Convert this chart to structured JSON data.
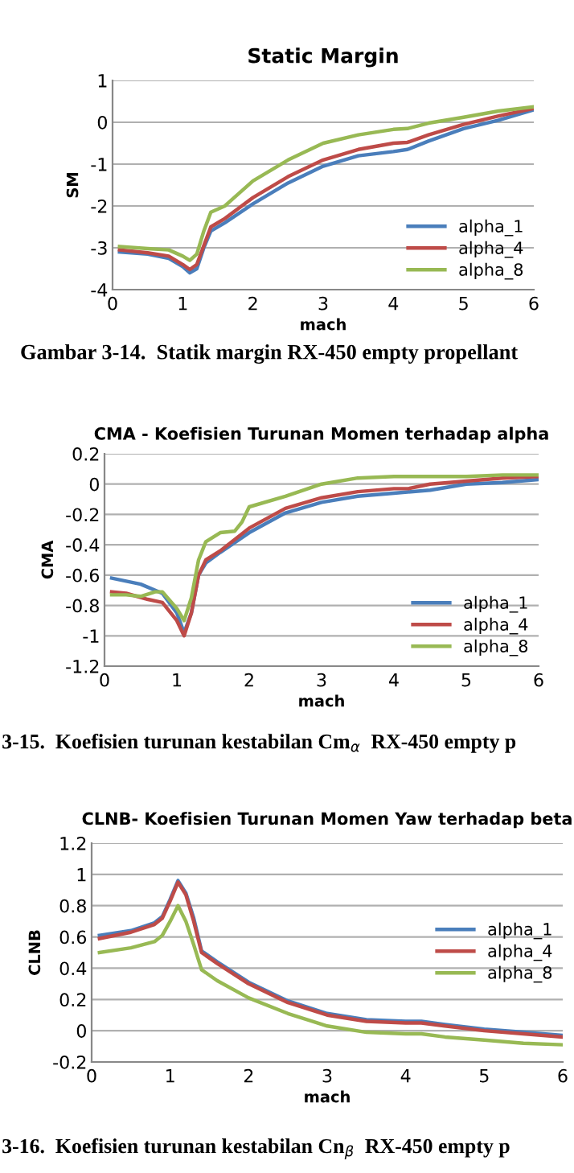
{
  "chart_data": [
    {
      "type": "line",
      "title": "Static Margin",
      "xlabel": "mach",
      "ylabel": "SM",
      "xlim": [
        0,
        6
      ],
      "xticks": [
        0,
        1,
        2,
        3,
        4,
        5,
        6
      ],
      "ylim": [
        -4,
        1
      ],
      "yticks": [
        -4,
        -3,
        -2,
        -1,
        0,
        1
      ],
      "grid": "y",
      "legend": "bottom right",
      "marker": "none",
      "line_style": "solid",
      "annotations": [
        "Gambar 3-14.  Statik margin RX-450 empty propellant"
      ],
      "series": [
        {
          "name": "alpha_1",
          "color": "#4a7ebb",
          "x": [
            0.1,
            0.5,
            0.8,
            1.0,
            1.1,
            1.2,
            1.3,
            1.4,
            1.6,
            2,
            2.5,
            3,
            3.5,
            4,
            4.2,
            4.5,
            5,
            5.5,
            6
          ],
          "values": [
            -3.1,
            -3.15,
            -3.25,
            -3.45,
            -3.6,
            -3.5,
            -3.0,
            -2.6,
            -2.4,
            -1.95,
            -1.45,
            -1.05,
            -0.8,
            -0.7,
            -0.65,
            -0.45,
            -0.15,
            0.05,
            0.3
          ]
        },
        {
          "name": "alpha_4",
          "color": "#be4b48",
          "x": [
            0.1,
            0.5,
            0.8,
            1.0,
            1.1,
            1.2,
            1.3,
            1.4,
            1.6,
            2,
            2.5,
            3,
            3.5,
            4,
            4.2,
            4.5,
            5,
            5.5,
            6
          ],
          "values": [
            -3.05,
            -3.12,
            -3.2,
            -3.4,
            -3.52,
            -3.4,
            -2.95,
            -2.5,
            -2.3,
            -1.8,
            -1.3,
            -0.9,
            -0.65,
            -0.5,
            -0.48,
            -0.3,
            -0.05,
            0.15,
            0.33
          ]
        },
        {
          "name": "alpha_8",
          "color": "#98b954",
          "x": [
            0.1,
            0.5,
            0.8,
            1.0,
            1.1,
            1.2,
            1.3,
            1.4,
            1.6,
            1.7,
            2,
            2.5,
            3,
            3.5,
            4,
            4.2,
            4.5,
            5,
            5.5,
            6
          ],
          "values": [
            -2.97,
            -3.02,
            -3.05,
            -3.2,
            -3.3,
            -3.15,
            -2.6,
            -2.15,
            -2.0,
            -1.85,
            -1.4,
            -0.9,
            -0.5,
            -0.3,
            -0.17,
            -0.15,
            -0.02,
            0.12,
            0.27,
            0.37
          ]
        }
      ]
    },
    {
      "type": "line",
      "title": "CMA - Koefisien Turunan Momen terhadap alpha",
      "xlabel": "mach",
      "ylabel": "CMA",
      "xlim": [
        0,
        6
      ],
      "xticks": [
        0,
        1,
        2,
        3,
        4,
        5,
        6
      ],
      "ylim": [
        -1.2,
        0.2
      ],
      "yticks": [
        -1.2,
        -1,
        -0.8,
        -0.6,
        -0.4,
        -0.2,
        0,
        0.2
      ],
      "grid": "y",
      "legend": "bottom right",
      "marker": "none",
      "line_style": "solid",
      "annotations": [
        "3-15.  Koefisien turunan kestabilan Cm$_{α}$  RX-450 empty p"
      ],
      "series": [
        {
          "name": "alpha_1",
          "color": "#4a7ebb",
          "x": [
            0.1,
            0.5,
            0.8,
            1.0,
            1.1,
            1.2,
            1.3,
            1.4,
            1.6,
            2,
            2.5,
            3,
            3.5,
            4,
            4.5,
            5,
            5.5,
            6
          ],
          "values": [
            -0.62,
            -0.66,
            -0.72,
            -0.85,
            -0.98,
            -0.85,
            -0.6,
            -0.52,
            -0.45,
            -0.32,
            -0.19,
            -0.12,
            -0.08,
            -0.06,
            -0.04,
            0.0,
            0.01,
            0.03
          ]
        },
        {
          "name": "alpha_4",
          "color": "#be4b48",
          "x": [
            0.1,
            0.3,
            0.6,
            0.8,
            1.0,
            1.1,
            1.2,
            1.3,
            1.4,
            1.6,
            2,
            2.5,
            3,
            3.5,
            4,
            4.2,
            4.5,
            5,
            5.5,
            6
          ],
          "values": [
            -0.71,
            -0.72,
            -0.76,
            -0.78,
            -0.9,
            -1.0,
            -0.85,
            -0.6,
            -0.5,
            -0.44,
            -0.29,
            -0.16,
            -0.09,
            -0.05,
            -0.03,
            -0.03,
            0.0,
            0.02,
            0.04,
            0.05
          ]
        },
        {
          "name": "alpha_8",
          "color": "#98b954",
          "x": [
            0.1,
            0.3,
            0.5,
            0.7,
            0.8,
            1.0,
            1.1,
            1.2,
            1.3,
            1.4,
            1.6,
            1.8,
            1.9,
            2,
            2.5,
            3,
            3.5,
            4,
            4.2,
            4.5,
            5,
            5.5,
            6
          ],
          "values": [
            -0.73,
            -0.73,
            -0.74,
            -0.71,
            -0.71,
            -0.82,
            -0.9,
            -0.75,
            -0.5,
            -0.38,
            -0.32,
            -0.31,
            -0.25,
            -0.15,
            -0.08,
            0.0,
            0.04,
            0.05,
            0.05,
            0.05,
            0.05,
            0.06,
            0.06
          ]
        }
      ]
    },
    {
      "type": "line",
      "title": "CLNB- Koefisien Turunan Momen Yaw terhadap beta",
      "xlabel": "mach",
      "ylabel": "CLNB",
      "xlim": [
        0,
        6
      ],
      "xticks": [
        0,
        1,
        2,
        3,
        4,
        5,
        6
      ],
      "ylim": [
        -0.2,
        1.2
      ],
      "yticks": [
        -0.2,
        0,
        0.2,
        0.4,
        0.6,
        0.8,
        1,
        1.2
      ],
      "grid": "y",
      "legend": "right",
      "marker": "none",
      "line_style": "solid",
      "annotations": [
        "3-16.  Koefisien turunan kestabilan Cn$_{β}$  RX-450 empty p"
      ],
      "series": [
        {
          "name": "alpha_1",
          "color": "#4a7ebb",
          "x": [
            0.1,
            0.5,
            0.8,
            0.9,
            1.0,
            1.1,
            1.2,
            1.3,
            1.4,
            1.6,
            2,
            2.5,
            3,
            3.5,
            4,
            4.2,
            4.5,
            5,
            5.5,
            6
          ],
          "values": [
            0.61,
            0.64,
            0.69,
            0.73,
            0.84,
            0.96,
            0.88,
            0.72,
            0.51,
            0.44,
            0.31,
            0.19,
            0.11,
            0.07,
            0.06,
            0.06,
            0.04,
            0.01,
            -0.01,
            -0.03
          ]
        },
        {
          "name": "alpha_4",
          "color": "#be4b48",
          "x": [
            0.1,
            0.5,
            0.8,
            0.9,
            1.0,
            1.1,
            1.2,
            1.3,
            1.4,
            1.6,
            2,
            2.5,
            3,
            3.5,
            4,
            4.2,
            4.5,
            5,
            5.5,
            6
          ],
          "values": [
            0.59,
            0.63,
            0.68,
            0.72,
            0.83,
            0.95,
            0.87,
            0.7,
            0.5,
            0.43,
            0.3,
            0.18,
            0.1,
            0.06,
            0.05,
            0.05,
            0.03,
            0.0,
            -0.02,
            -0.04
          ]
        },
        {
          "name": "alpha_8",
          "color": "#98b954",
          "x": [
            0.1,
            0.5,
            0.8,
            0.9,
            1.0,
            1.1,
            1.2,
            1.3,
            1.4,
            1.6,
            2,
            2.5,
            3,
            3.5,
            4,
            4.2,
            4.5,
            5,
            5.5,
            6
          ],
          "values": [
            0.5,
            0.53,
            0.57,
            0.61,
            0.7,
            0.8,
            0.7,
            0.55,
            0.39,
            0.32,
            0.21,
            0.11,
            0.03,
            -0.01,
            -0.02,
            -0.02,
            -0.04,
            -0.06,
            -0.08,
            -0.09
          ]
        }
      ]
    }
  ]
}
